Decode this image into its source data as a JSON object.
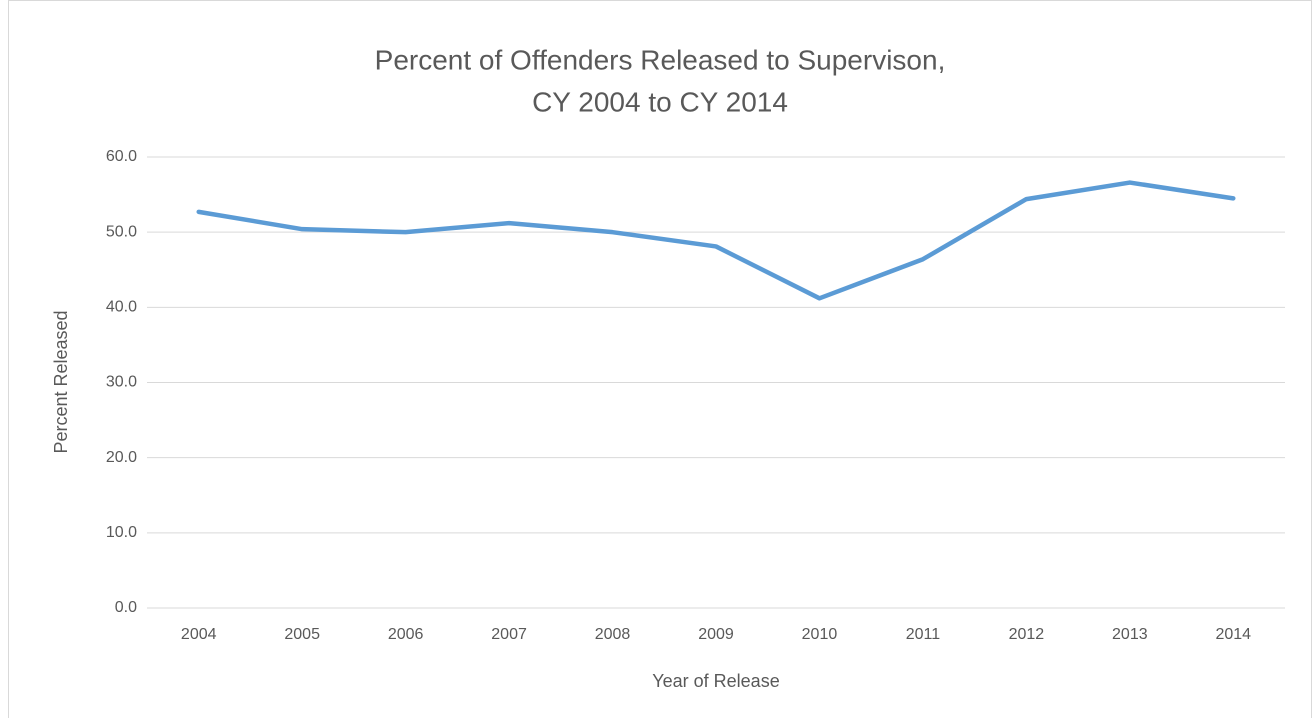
{
  "chart_data": {
    "type": "line",
    "title": [
      "Percent of Offenders Released to Supervison,",
      "CY 2004 to CY 2014"
    ],
    "x_label": "Year of Release",
    "y_label": "Percent Released",
    "categories": [
      "2004",
      "2005",
      "2006",
      "2007",
      "2008",
      "2009",
      "2010",
      "2011",
      "2012",
      "2013",
      "2014"
    ],
    "series": [
      {
        "name": "Percent Released",
        "color": "#5b9bd5",
        "values": [
          52.7,
          50.4,
          50.0,
          51.2,
          50.0,
          48.1,
          41.2,
          46.4,
          54.4,
          56.6,
          54.5
        ]
      }
    ],
    "ylim": [
      0,
      60
    ],
    "yticks": [
      {
        "value": 0,
        "label": "0.0"
      },
      {
        "value": 10,
        "label": "10.0"
      },
      {
        "value": 20,
        "label": "20.0"
      },
      {
        "value": 30,
        "label": "30.0"
      },
      {
        "value": 40,
        "label": "40.0"
      },
      {
        "value": 50,
        "label": "50.0"
      },
      {
        "value": 60,
        "label": "60.0"
      }
    ],
    "grid": true,
    "legend": false
  }
}
